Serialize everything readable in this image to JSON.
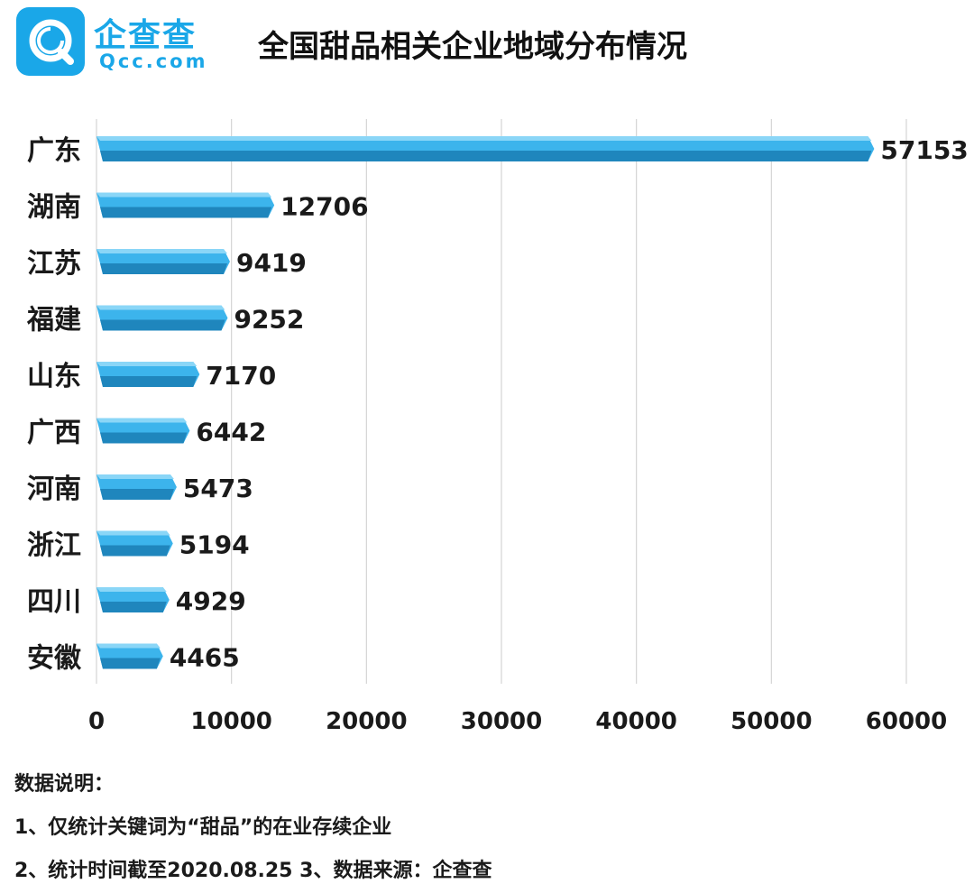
{
  "brand": {
    "name_cn": "企查查",
    "name_en": "Qcc.com",
    "badge_icon": "magnifier-q-icon",
    "color": "#1aa7e8"
  },
  "chart_data": {
    "type": "bar",
    "orientation": "horizontal",
    "title": "全国甜品相关企业地域分布情况",
    "categories": [
      "广东",
      "湖南",
      "江苏",
      "福建",
      "山东",
      "广西",
      "河南",
      "浙江",
      "四川",
      "安徽"
    ],
    "values": [
      57153,
      12706,
      9419,
      9252,
      7170,
      6442,
      5473,
      5194,
      4929,
      4465
    ],
    "xlim": [
      0,
      60000
    ],
    "x_ticks": [
      0,
      10000,
      20000,
      30000,
      40000,
      50000,
      60000
    ],
    "grid": "vertical",
    "data_labels": true,
    "bar_color": "#3cb4ec",
    "bar_shade_color": "#1f86bd",
    "bar_top_color": "#8ad6f7"
  },
  "notes": {
    "heading": "数据说明：",
    "line1": "1、仅统计关键词为“甜品”的在业存续企业",
    "line2": "2、统计时间截至2020.08.25   3、数据来源：企查查"
  }
}
